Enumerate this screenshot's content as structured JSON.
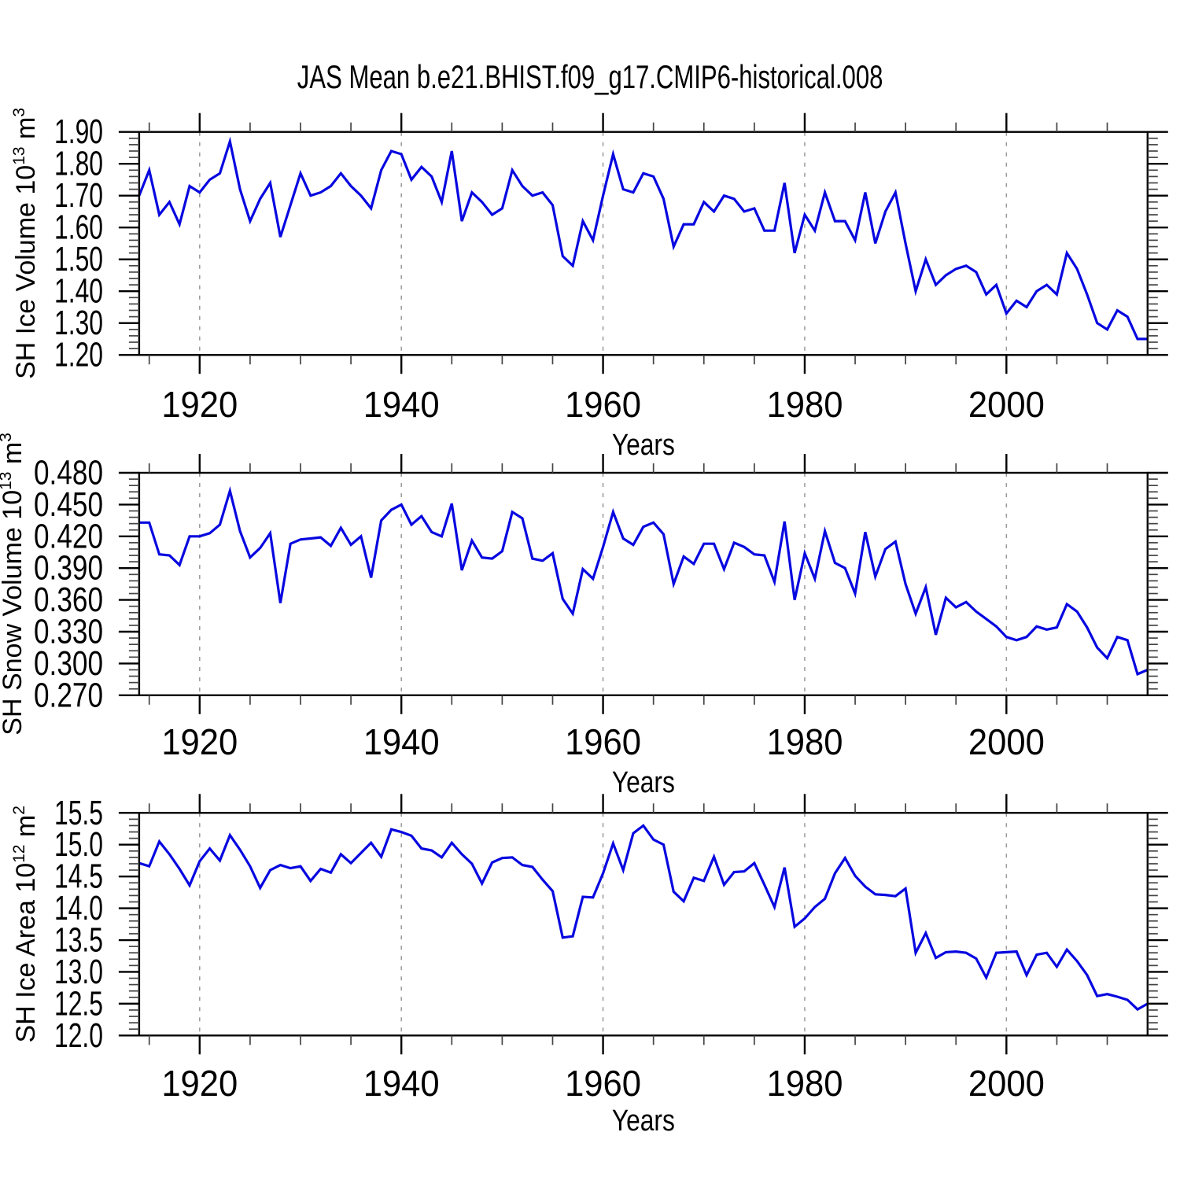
{
  "figure": {
    "background_color": "#ffffff",
    "line_color": "#0707e0",
    "grid_color": "#999999",
    "axis_color": "#000000",
    "minor_tick_color": "#444444"
  },
  "chart_data": {
    "type": "line",
    "title": "JAS Mean b.e21.BHIST.f09_g17.CMIP6-historical.008",
    "xlabel": "Years",
    "xlim": [
      1914,
      2014
    ],
    "x_major_ticks": [
      1920,
      1940,
      1960,
      1980,
      2000
    ],
    "x_tick_labels": [
      "1920",
      "1940",
      "1960",
      "1980",
      "2000"
    ],
    "x_minor_tick_step": 5,
    "grid": "vertical dashed gridlines at major x ticks",
    "legend": "none",
    "x": [
      1914,
      1915,
      1916,
      1917,
      1918,
      1919,
      1920,
      1921,
      1922,
      1923,
      1924,
      1925,
      1926,
      1927,
      1928,
      1929,
      1930,
      1931,
      1932,
      1933,
      1934,
      1935,
      1936,
      1937,
      1938,
      1939,
      1940,
      1941,
      1942,
      1943,
      1944,
      1945,
      1946,
      1947,
      1948,
      1949,
      1950,
      1951,
      1952,
      1953,
      1954,
      1955,
      1956,
      1957,
      1958,
      1959,
      1960,
      1961,
      1962,
      1963,
      1964,
      1965,
      1966,
      1967,
      1968,
      1969,
      1970,
      1971,
      1972,
      1973,
      1974,
      1975,
      1976,
      1977,
      1978,
      1979,
      1980,
      1981,
      1982,
      1983,
      1984,
      1985,
      1986,
      1987,
      1988,
      1989,
      1990,
      1991,
      1992,
      1993,
      1994,
      1995,
      1996,
      1997,
      1998,
      1999,
      2000,
      2001,
      2002,
      2003,
      2004,
      2005,
      2006,
      2007,
      2008,
      2009,
      2010,
      2011,
      2012,
      2013,
      2014
    ],
    "series": [
      {
        "name": "SH Ice Volume",
        "ylabel": "SH Ice Volume 10^13 m^3",
        "ylabel_runs": [
          {
            "t": "SH Ice Volume 10"
          },
          {
            "t": "13",
            "sup": true
          },
          {
            "t": " m"
          },
          {
            "t": "3",
            "sup": true
          }
        ],
        "ylim": [
          1.2,
          1.9
        ],
        "y_major_tick_step": 0.1,
        "y_minor_tick_step": 0.02,
        "y_tick_labels": [
          "1.20",
          "1.30",
          "1.40",
          "1.50",
          "1.60",
          "1.70",
          "1.80",
          "1.90"
        ],
        "values": [
          1.7,
          1.78,
          1.64,
          1.68,
          1.61,
          1.73,
          1.71,
          1.75,
          1.77,
          1.87,
          1.72,
          1.62,
          1.69,
          1.74,
          1.57,
          1.67,
          1.77,
          1.7,
          1.71,
          1.73,
          1.77,
          1.73,
          1.7,
          1.66,
          1.78,
          1.84,
          1.83,
          1.75,
          1.79,
          1.76,
          1.68,
          1.84,
          1.62,
          1.71,
          1.68,
          1.64,
          1.66,
          1.78,
          1.73,
          1.7,
          1.71,
          1.67,
          1.51,
          1.48,
          1.62,
          1.56,
          1.7,
          1.83,
          1.72,
          1.71,
          1.77,
          1.76,
          1.69,
          1.54,
          1.61,
          1.61,
          1.68,
          1.65,
          1.7,
          1.69,
          1.65,
          1.66,
          1.59,
          1.59,
          1.74,
          1.52,
          1.64,
          1.59,
          1.71,
          1.62,
          1.62,
          1.56,
          1.71,
          1.55,
          1.65,
          1.71,
          1.55,
          1.4,
          1.5,
          1.42,
          1.45,
          1.47,
          1.48,
          1.46,
          1.39,
          1.42,
          1.33,
          1.37,
          1.35,
          1.4,
          1.42,
          1.39,
          1.52,
          1.47,
          1.39,
          1.3,
          1.28,
          1.34,
          1.32,
          1.25,
          1.25
        ]
      },
      {
        "name": "SH Snow Volume",
        "ylabel": "SH Snow Volume 10^13 m^3",
        "ylabel_runs": [
          {
            "t": "SH Snow Volume 10"
          },
          {
            "t": "13",
            "sup": true
          },
          {
            "t": " m"
          },
          {
            "t": "3",
            "sup": true
          }
        ],
        "ylim": [
          0.27,
          0.48
        ],
        "y_major_tick_step": 0.03,
        "y_minor_tick_step": 0.006,
        "y_tick_labels": [
          "0.270",
          "0.300",
          "0.330",
          "0.360",
          "0.390",
          "0.420",
          "0.450",
          "0.480"
        ],
        "values": [
          0.433,
          0.433,
          0.403,
          0.402,
          0.393,
          0.42,
          0.42,
          0.423,
          0.431,
          0.463,
          0.425,
          0.4,
          0.409,
          0.423,
          0.357,
          0.413,
          0.417,
          0.418,
          0.419,
          0.411,
          0.428,
          0.412,
          0.42,
          0.381,
          0.435,
          0.445,
          0.45,
          0.431,
          0.439,
          0.424,
          0.42,
          0.451,
          0.388,
          0.416,
          0.4,
          0.399,
          0.406,
          0.443,
          0.437,
          0.399,
          0.397,
          0.404,
          0.361,
          0.347,
          0.389,
          0.38,
          0.41,
          0.443,
          0.418,
          0.412,
          0.429,
          0.433,
          0.422,
          0.375,
          0.401,
          0.394,
          0.413,
          0.413,
          0.389,
          0.414,
          0.41,
          0.403,
          0.402,
          0.377,
          0.434,
          0.36,
          0.404,
          0.38,
          0.425,
          0.395,
          0.39,
          0.366,
          0.424,
          0.382,
          0.408,
          0.415,
          0.375,
          0.347,
          0.372,
          0.327,
          0.362,
          0.353,
          0.358,
          0.349,
          0.342,
          0.335,
          0.325,
          0.322,
          0.325,
          0.335,
          0.332,
          0.334,
          0.356,
          0.349,
          0.334,
          0.315,
          0.305,
          0.325,
          0.322,
          0.29,
          0.294
        ]
      },
      {
        "name": "SH Ice Area",
        "ylabel": "SH Ice Area 10^12 m^2",
        "ylabel_runs": [
          {
            "t": "SH Ice Area 10"
          },
          {
            "t": "12",
            "sup": true
          },
          {
            "t": " m"
          },
          {
            "t": "2",
            "sup": true
          }
        ],
        "ylim": [
          12.0,
          15.5
        ],
        "y_major_tick_step": 0.5,
        "y_minor_tick_step": 0.1,
        "y_tick_labels": [
          "12.0",
          "12.5",
          "13.0",
          "13.5",
          "14.0",
          "14.5",
          "15.0",
          "15.5"
        ],
        "values": [
          14.71,
          14.66,
          15.05,
          14.85,
          14.62,
          14.36,
          14.74,
          14.94,
          14.75,
          15.15,
          14.92,
          14.66,
          14.32,
          14.6,
          14.68,
          14.63,
          14.66,
          14.43,
          14.62,
          14.56,
          14.85,
          14.71,
          14.87,
          15.03,
          14.81,
          15.24,
          15.2,
          15.14,
          14.94,
          14.91,
          14.8,
          15.03,
          14.85,
          14.7,
          14.39,
          14.72,
          14.79,
          14.8,
          14.68,
          14.65,
          14.45,
          14.27,
          13.54,
          13.56,
          14.18,
          14.17,
          14.55,
          15.02,
          14.6,
          15.18,
          15.3,
          15.08,
          15.0,
          14.26,
          14.11,
          14.48,
          14.43,
          14.81,
          14.37,
          14.57,
          14.58,
          14.71,
          14.37,
          14.02,
          14.64,
          13.71,
          13.84,
          14.02,
          14.15,
          14.55,
          14.79,
          14.51,
          14.34,
          14.22,
          14.21,
          14.19,
          14.31,
          13.3,
          13.61,
          13.22,
          13.31,
          13.32,
          13.3,
          13.21,
          12.91,
          13.3,
          13.31,
          13.32,
          12.95,
          13.27,
          13.3,
          13.08,
          13.35,
          13.17,
          12.95,
          12.62,
          12.65,
          12.61,
          12.56,
          12.41,
          12.5
        ]
      }
    ]
  }
}
